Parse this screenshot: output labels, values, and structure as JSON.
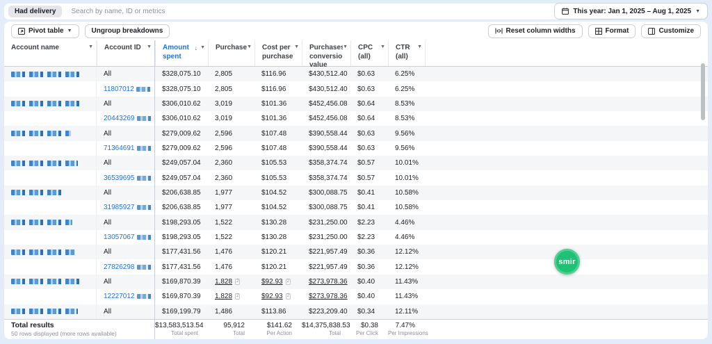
{
  "topbar": {
    "filter_chip": "Had delivery",
    "search_placeholder": "Search by name, ID or metrics",
    "date_range": "This year: Jan 1, 2025 – Aug 1, 2025"
  },
  "toolbar": {
    "pivot_table": "Pivot table",
    "ungroup_breakdowns": "Ungroup breakdowns",
    "reset_column_widths": "Reset column widths",
    "format": "Format",
    "customize": "Customize"
  },
  "table": {
    "columns": [
      {
        "label": "Account name"
      },
      {
        "label": "Account ID"
      },
      {
        "label": "Amount spent",
        "sorted": true,
        "sort_arrow": "↓"
      },
      {
        "label": "Purchases"
      },
      {
        "label": "Cost per purchase"
      },
      {
        "label": "Purchases conversion value"
      },
      {
        "label": "CPC",
        "sublabel": "(all)"
      },
      {
        "label": "CTR",
        "sublabel": "(all)"
      }
    ],
    "footnote_marker": "2",
    "rows": [
      {
        "name_redacted": true,
        "account_id": "All",
        "id_link": false,
        "amount": "$328,075.10",
        "purchases": "2,805",
        "cost_per_purchase": "$116.96",
        "conversion_value": "$430,512.40",
        "cpc": "$0.63",
        "ctr": "6.25%"
      },
      {
        "name_redacted": false,
        "account_id": "11807012",
        "id_link": true,
        "id_tail_redacted": true,
        "amount": "$328,075.10",
        "purchases": "2,805",
        "cost_per_purchase": "$116.96",
        "conversion_value": "$430,512.40",
        "cpc": "$0.63",
        "ctr": "6.25%"
      },
      {
        "name_redacted": true,
        "account_id": "All",
        "id_link": false,
        "amount": "$306,010.62",
        "purchases": "3,019",
        "cost_per_purchase": "$101.36",
        "conversion_value": "$452,456.08",
        "cpc": "$0.64",
        "ctr": "8.53%"
      },
      {
        "name_redacted": false,
        "account_id": "20443269",
        "id_link": true,
        "id_tail_redacted": true,
        "amount": "$306,010.62",
        "purchases": "3,019",
        "cost_per_purchase": "$101.36",
        "conversion_value": "$452,456.08",
        "cpc": "$0.64",
        "ctr": "8.53%"
      },
      {
        "name_redacted": true,
        "account_id": "All",
        "id_link": false,
        "amount": "$279,009.62",
        "purchases": "2,596",
        "cost_per_purchase": "$107.48",
        "conversion_value": "$390,558.44",
        "cpc": "$0.63",
        "ctr": "9.56%"
      },
      {
        "name_redacted": false,
        "account_id": "71364691",
        "id_link": true,
        "id_tail_redacted": true,
        "amount": "$279,009.62",
        "purchases": "2,596",
        "cost_per_purchase": "$107.48",
        "conversion_value": "$390,558.44",
        "cpc": "$0.63",
        "ctr": "9.56%"
      },
      {
        "name_redacted": true,
        "account_id": "All",
        "id_link": false,
        "amount": "$249,057.04",
        "purchases": "2,360",
        "cost_per_purchase": "$105.53",
        "conversion_value": "$358,374.74",
        "cpc": "$0.57",
        "ctr": "10.01%"
      },
      {
        "name_redacted": false,
        "account_id": "36539695",
        "id_link": true,
        "id_tail_redacted": true,
        "amount": "$249,057.04",
        "purchases": "2,360",
        "cost_per_purchase": "$105.53",
        "conversion_value": "$358,374.74",
        "cpc": "$0.57",
        "ctr": "10.01%"
      },
      {
        "name_redacted": true,
        "account_id": "All",
        "id_link": false,
        "amount": "$206,638.85",
        "purchases": "1,977",
        "cost_per_purchase": "$104.52",
        "conversion_value": "$300,088.75",
        "cpc": "$0.41",
        "ctr": "10.58%"
      },
      {
        "name_redacted": false,
        "account_id": "31985927",
        "id_link": true,
        "id_tail_redacted": true,
        "amount": "$206,638.85",
        "purchases": "1,977",
        "cost_per_purchase": "$104.52",
        "conversion_value": "$300,088.75",
        "cpc": "$0.41",
        "ctr": "10.58%"
      },
      {
        "name_redacted": true,
        "account_id": "All",
        "id_link": false,
        "amount": "$198,293.05",
        "purchases": "1,522",
        "cost_per_purchase": "$130.28",
        "conversion_value": "$231,250.00",
        "cpc": "$2.23",
        "ctr": "4.46%"
      },
      {
        "name_redacted": false,
        "account_id": "13057067",
        "id_link": true,
        "id_tail_redacted": true,
        "amount": "$198,293.05",
        "purchases": "1,522",
        "cost_per_purchase": "$130.28",
        "conversion_value": "$231,250.00",
        "cpc": "$2.23",
        "ctr": "4.46%"
      },
      {
        "name_redacted": true,
        "account_id": "All",
        "id_link": false,
        "amount": "$177,431.56",
        "purchases": "1,476",
        "cost_per_purchase": "$120.21",
        "conversion_value": "$221,957.49",
        "cpc": "$0.36",
        "ctr": "12.12%"
      },
      {
        "name_redacted": false,
        "account_id": "27826298",
        "id_link": true,
        "id_tail_redacted": true,
        "amount": "$177,431.56",
        "purchases": "1,476",
        "cost_per_purchase": "$120.21",
        "conversion_value": "$221,957.49",
        "cpc": "$0.36",
        "ctr": "12.12%"
      },
      {
        "name_redacted": true,
        "account_id": "All",
        "id_link": false,
        "amount": "$169,870.39",
        "purchases": "1,828",
        "cost_per_purchase": "$92.93",
        "conversion_value": "$273,978.36",
        "cpc": "$0.40",
        "ctr": "11.43%",
        "noted": true
      },
      {
        "name_redacted": false,
        "account_id": "12227012",
        "id_link": true,
        "id_tail_redacted": true,
        "amount": "$169,870.39",
        "purchases": "1,828",
        "cost_per_purchase": "$92.93",
        "conversion_value": "$273,978.36",
        "cpc": "$0.40",
        "ctr": "11.43%",
        "noted": true
      },
      {
        "name_redacted": true,
        "account_id": "All",
        "id_link": false,
        "amount": "$169,199.79",
        "purchases": "1,486",
        "cost_per_purchase": "$113.86",
        "conversion_value": "$223,209.40",
        "cpc": "$0.34",
        "ctr": "12.11%"
      }
    ],
    "totals": {
      "title": "Total results",
      "subtitle": "50 rows displayed (more rows available)",
      "cells": [
        {
          "value": "$13,583,513.54",
          "label": "Total spent"
        },
        {
          "value": "95,912",
          "label": "Total"
        },
        {
          "value": "$141.62",
          "label": "Per Action"
        },
        {
          "value": "$14,375,838.53",
          "label": "Total"
        },
        {
          "value": "$0.38",
          "label": "Per Click"
        },
        {
          "value": "7.47%",
          "label": "Per Impressions"
        }
      ]
    }
  },
  "badge": {
    "text": "smir",
    "color": "#1fc274"
  }
}
